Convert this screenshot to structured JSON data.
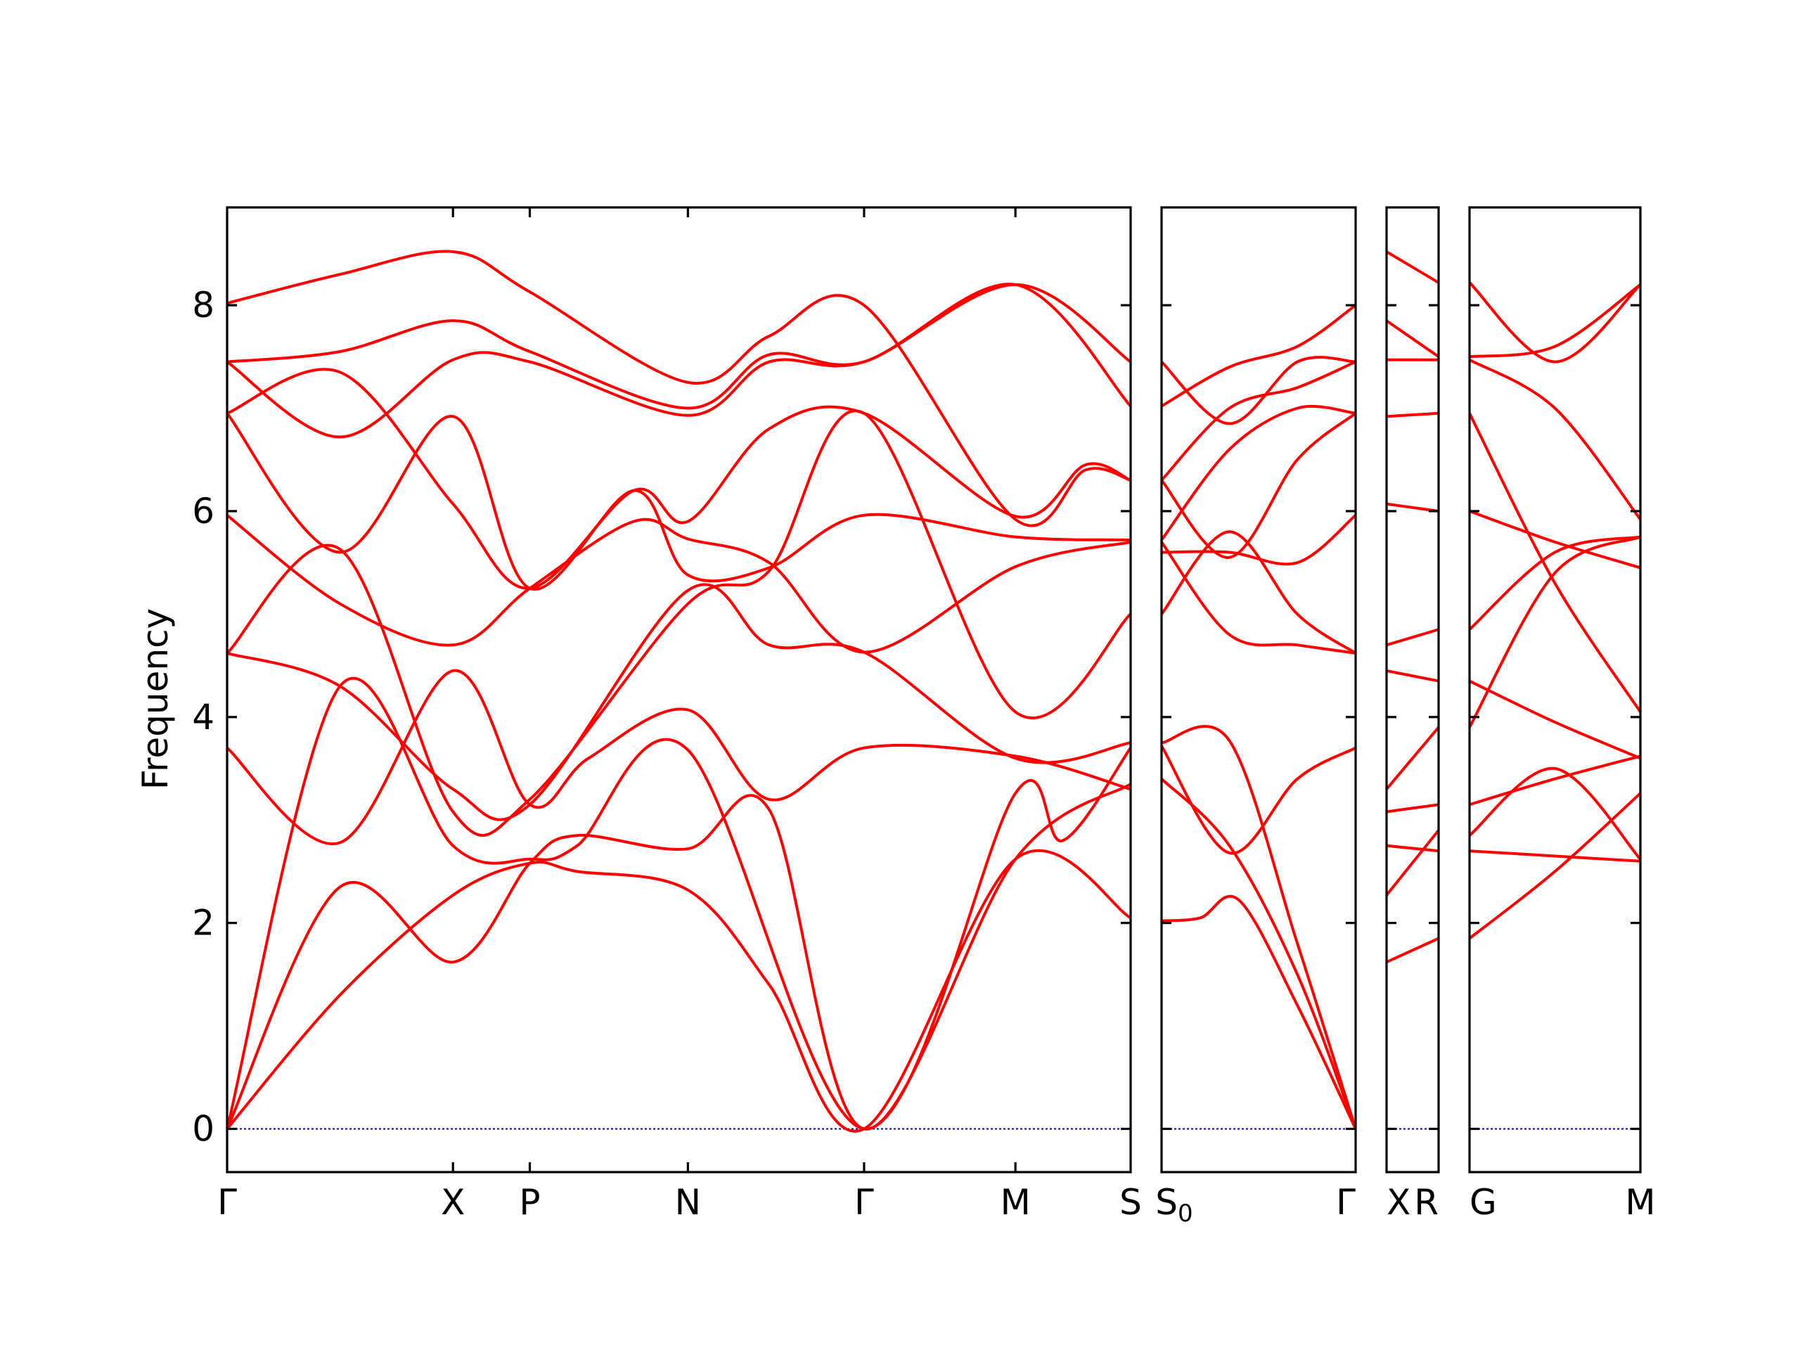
{
  "chart_data": {
    "type": "line",
    "ylabel": "Frequency",
    "ylim": [
      -0.42,
      8.95
    ],
    "yticks": [
      "0",
      "2",
      "4",
      "6",
      "8"
    ],
    "grid": false,
    "colors": {
      "bands": "#ff0000",
      "zero_line": "#0000cc",
      "axes": "#000000"
    },
    "segments": [
      {
        "name": "segment-1",
        "xlim": [
          0,
          4
        ],
        "xticks": [
          {
            "x": 0,
            "label": "Γ"
          },
          {
            "x": 1,
            "label": "X"
          },
          {
            "x": 1.34,
            "label": "P"
          },
          {
            "x": 2.04,
            "label": "N"
          },
          {
            "x": 2.82,
            "label": "Γ"
          },
          {
            "x": 3.49,
            "label": "M"
          },
          {
            "x": 4,
            "label": "S"
          }
        ],
        "bands": [
          [
            [
              0,
              0
            ],
            [
              0.5,
              2.35
            ],
            [
              1,
              1.62
            ],
            [
              1.34,
              2.58
            ],
            [
              1.55,
              2.85
            ],
            [
              2.04,
              2.72
            ],
            [
              2.4,
              3.1
            ],
            [
              2.82,
              0
            ],
            [
              3.49,
              2.62
            ],
            [
              4,
              3.35
            ]
          ],
          [
            [
              0,
              0
            ],
            [
              0.5,
              1.3
            ],
            [
              1,
              2.27
            ],
            [
              1.34,
              2.58
            ],
            [
              1.55,
              2.5
            ],
            [
              2.04,
              2.32
            ],
            [
              2.4,
              1.4
            ],
            [
              2.82,
              0
            ],
            [
              3.49,
              2.62
            ],
            [
              4,
              2.05
            ]
          ],
          [
            [
              0,
              0
            ],
            [
              0.5,
              4.3
            ],
            [
              1,
              2.75
            ],
            [
              1.34,
              2.62
            ],
            [
              1.55,
              2.75
            ],
            [
              2.04,
              3.68
            ],
            [
              2.82,
              0
            ],
            [
              3.49,
              3.26
            ],
            [
              3.7,
              2.8
            ],
            [
              4,
              3.7
            ]
          ],
          [
            [
              0,
              3.7
            ],
            [
              0.5,
              2.78
            ],
            [
              1,
              4.45
            ],
            [
              1.34,
              3.15
            ],
            [
              1.6,
              3.6
            ],
            [
              2.04,
              4.07
            ],
            [
              2.4,
              3.2
            ],
            [
              2.82,
              3.7
            ],
            [
              3.49,
              3.62
            ],
            [
              4,
              3.3
            ]
          ],
          [
            [
              0,
              4.62
            ],
            [
              0.5,
              4.3
            ],
            [
              1,
              3.3
            ],
            [
              1.34,
              3.15
            ],
            [
              2.04,
              5.23
            ],
            [
              2.4,
              4.7
            ],
            [
              2.82,
              4.63
            ],
            [
              3.49,
              3.6
            ],
            [
              4,
              3.75
            ]
          ],
          [
            [
              0,
              4.62
            ],
            [
              0.5,
              5.63
            ],
            [
              1,
              3.08
            ],
            [
              1.34,
              3.2
            ],
            [
              2.04,
              5.1
            ],
            [
              2.4,
              5.42
            ],
            [
              2.82,
              6.95
            ],
            [
              3.49,
              4.05
            ],
            [
              4,
              5.0
            ]
          ],
          [
            [
              0,
              5.96
            ],
            [
              0.5,
              5.1
            ],
            [
              1,
              4.7
            ],
            [
              1.34,
              5.25
            ],
            [
              1.8,
              5.9
            ],
            [
              2.04,
              5.73
            ],
            [
              2.4,
              5.5
            ],
            [
              2.82,
              4.63
            ],
            [
              3.49,
              5.46
            ],
            [
              4,
              5.7
            ]
          ],
          [
            [
              0,
              6.95
            ],
            [
              0.5,
              5.6
            ],
            [
              1,
              6.92
            ],
            [
              1.34,
              5.25
            ],
            [
              1.8,
              6.2
            ],
            [
              2.04,
              5.38
            ],
            [
              2.4,
              5.45
            ],
            [
              2.82,
              5.96
            ],
            [
              3.49,
              5.75
            ],
            [
              4,
              5.72
            ]
          ],
          [
            [
              0,
              6.95
            ],
            [
              0.5,
              7.35
            ],
            [
              1,
              6.07
            ],
            [
              1.34,
              5.25
            ],
            [
              1.8,
              6.2
            ],
            [
              2.04,
              5.9
            ],
            [
              2.4,
              6.8
            ],
            [
              2.82,
              6.95
            ],
            [
              3.49,
              5.95
            ],
            [
              3.8,
              6.45
            ],
            [
              4,
              6.3
            ]
          ],
          [
            [
              0,
              7.45
            ],
            [
              0.5,
              6.72
            ],
            [
              1,
              7.47
            ],
            [
              1.34,
              7.45
            ],
            [
              2.04,
              6.93
            ],
            [
              2.4,
              7.45
            ],
            [
              2.82,
              7.45
            ],
            [
              3.49,
              8.2
            ],
            [
              4,
              7.45
            ]
          ],
          [
            [
              0,
              7.45
            ],
            [
              0.5,
              7.55
            ],
            [
              1,
              7.85
            ],
            [
              1.34,
              7.55
            ],
            [
              2.04,
              7.0
            ],
            [
              2.4,
              7.52
            ],
            [
              2.82,
              7.45
            ],
            [
              3.49,
              8.2
            ],
            [
              4,
              7.02
            ]
          ],
          [
            [
              0,
              8.02
            ],
            [
              0.5,
              8.3
            ],
            [
              1,
              8.52
            ],
            [
              1.34,
              8.13
            ],
            [
              2.04,
              7.25
            ],
            [
              2.4,
              7.7
            ],
            [
              2.82,
              8.0
            ],
            [
              3.49,
              5.92
            ],
            [
              3.8,
              6.4
            ],
            [
              4,
              6.3
            ]
          ]
        ]
      },
      {
        "name": "segment-2",
        "xlim": [
          0,
          1
        ],
        "xticks": [
          {
            "x": 0,
            "label": "S",
            "sub": "0"
          },
          {
            "x": 1,
            "label": "Γ"
          }
        ],
        "bands": [
          [
            [
              0,
              2.02
            ],
            [
              0.2,
              2.05
            ],
            [
              0.4,
              2.22
            ],
            [
              0.7,
              1.2
            ],
            [
              1,
              0
            ]
          ],
          [
            [
              0,
              3.4
            ],
            [
              0.35,
              2.75
            ],
            [
              0.7,
              1.5
            ],
            [
              1,
              0
            ]
          ],
          [
            [
              0,
              3.75
            ],
            [
              0.35,
              3.77
            ],
            [
              0.7,
              1.8
            ],
            [
              1,
              0
            ]
          ],
          [
            [
              0,
              3.72
            ],
            [
              0.35,
              2.68
            ],
            [
              0.7,
              3.4
            ],
            [
              1,
              3.7
            ]
          ],
          [
            [
              0,
              5.0
            ],
            [
              0.35,
              5.8
            ],
            [
              0.7,
              5.0
            ],
            [
              1,
              4.62
            ]
          ],
          [
            [
              0,
              5.7
            ],
            [
              0.35,
              4.8
            ],
            [
              0.7,
              4.7
            ],
            [
              1,
              4.62
            ]
          ],
          [
            [
              0,
              5.6
            ],
            [
              0.35,
              5.6
            ],
            [
              0.7,
              5.5
            ],
            [
              1,
              5.96
            ]
          ],
          [
            [
              0,
              6.3
            ],
            [
              0.35,
              5.55
            ],
            [
              0.7,
              6.5
            ],
            [
              1,
              6.95
            ]
          ],
          [
            [
              0,
              5.72
            ],
            [
              0.35,
              6.6
            ],
            [
              0.7,
              7.0
            ],
            [
              1,
              6.95
            ]
          ],
          [
            [
              0,
              6.3
            ],
            [
              0.35,
              7.0
            ],
            [
              0.7,
              7.2
            ],
            [
              1,
              7.45
            ]
          ],
          [
            [
              0,
              7.45
            ],
            [
              0.35,
              6.85
            ],
            [
              0.7,
              7.45
            ],
            [
              1,
              7.45
            ]
          ],
          [
            [
              0,
              7.02
            ],
            [
              0.35,
              7.4
            ],
            [
              0.7,
              7.6
            ],
            [
              1,
              8.0
            ]
          ]
        ]
      },
      {
        "name": "segment-3",
        "xlim": [
          0,
          1
        ],
        "xticks": [
          {
            "x": 0,
            "label": "X"
          },
          {
            "x": 1,
            "label": "R"
          }
        ],
        "bands": [
          [
            [
              0,
              1.62
            ],
            [
              1,
              1.85
            ]
          ],
          [
            [
              0,
              2.27
            ],
            [
              1,
              2.9
            ]
          ],
          [
            [
              0,
              2.75
            ],
            [
              1,
              2.7
            ]
          ],
          [
            [
              0,
              3.08
            ],
            [
              1,
              3.15
            ]
          ],
          [
            [
              0,
              3.3
            ],
            [
              1,
              3.9
            ]
          ],
          [
            [
              0,
              4.45
            ],
            [
              1,
              4.35
            ]
          ],
          [
            [
              0,
              4.7
            ],
            [
              1,
              4.85
            ]
          ],
          [
            [
              0,
              6.07
            ],
            [
              1,
              6.0
            ]
          ],
          [
            [
              0,
              6.92
            ],
            [
              1,
              6.95
            ]
          ],
          [
            [
              0,
              7.47
            ],
            [
              1,
              7.47
            ]
          ],
          [
            [
              0,
              7.85
            ],
            [
              1,
              7.5
            ]
          ],
          [
            [
              0,
              8.52
            ],
            [
              1,
              8.22
            ]
          ]
        ]
      },
      {
        "name": "segment-4",
        "xlim": [
          0,
          1
        ],
        "xticks": [
          {
            "x": 0,
            "label": "G"
          },
          {
            "x": 1,
            "label": "M"
          }
        ],
        "bands": [
          [
            [
              0,
              1.85
            ],
            [
              0.5,
              2.5
            ],
            [
              1,
              3.26
            ]
          ],
          [
            [
              0,
              2.7
            ],
            [
              0.5,
              2.65
            ],
            [
              1,
              2.6
            ]
          ],
          [
            [
              0,
              2.85
            ],
            [
              0.5,
              3.5
            ],
            [
              1,
              2.62
            ]
          ],
          [
            [
              0,
              3.15
            ],
            [
              0.5,
              3.4
            ],
            [
              1,
              3.62
            ]
          ],
          [
            [
              0,
              3.9
            ],
            [
              0.5,
              5.4
            ],
            [
              1,
              5.75
            ]
          ],
          [
            [
              0,
              4.35
            ],
            [
              0.5,
              3.95
            ],
            [
              1,
              3.6
            ]
          ],
          [
            [
              0,
              4.85
            ],
            [
              0.5,
              5.6
            ],
            [
              1,
              5.75
            ]
          ],
          [
            [
              0,
              6.0
            ],
            [
              0.5,
              5.7
            ],
            [
              1,
              5.45
            ]
          ],
          [
            [
              0,
              6.95
            ],
            [
              0.5,
              5.3
            ],
            [
              1,
              4.05
            ]
          ],
          [
            [
              0,
              7.47
            ],
            [
              0.5,
              7.0
            ],
            [
              1,
              5.92
            ]
          ],
          [
            [
              0,
              7.5
            ],
            [
              0.5,
              7.6
            ],
            [
              1,
              8.2
            ]
          ],
          [
            [
              0,
              8.22
            ],
            [
              0.5,
              7.45
            ],
            [
              1,
              8.2
            ]
          ]
        ]
      }
    ]
  }
}
